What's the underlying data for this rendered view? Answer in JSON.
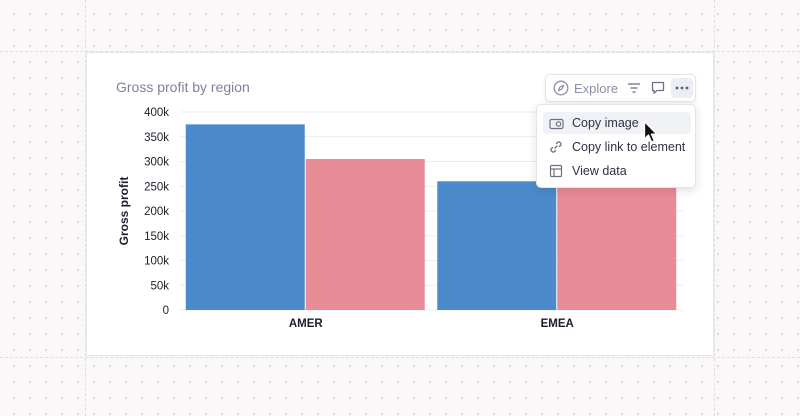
{
  "card": {
    "title": "Gross profit by region"
  },
  "toolbar": {
    "explore_label": "Explore"
  },
  "menu": {
    "items": [
      {
        "label": "Copy image"
      },
      {
        "label": "Copy link to element"
      },
      {
        "label": "View data"
      }
    ]
  },
  "chart_data": {
    "type": "bar",
    "title": "Gross profit by region",
    "xlabel": "",
    "ylabel": "Gross profit",
    "categories": [
      "AMER",
      "EMEA"
    ],
    "series": [
      {
        "color": "#4d8acb",
        "values": [
          375000,
          260000
        ]
      },
      {
        "color": "#e88c97",
        "values": [
          305000,
          262000
        ]
      }
    ],
    "ylim": [
      0,
      400000
    ],
    "yticks": [
      "0",
      "50k",
      "100k",
      "150k",
      "200k",
      "250k",
      "300k",
      "350k",
      "400k"
    ],
    "grid": true
  }
}
